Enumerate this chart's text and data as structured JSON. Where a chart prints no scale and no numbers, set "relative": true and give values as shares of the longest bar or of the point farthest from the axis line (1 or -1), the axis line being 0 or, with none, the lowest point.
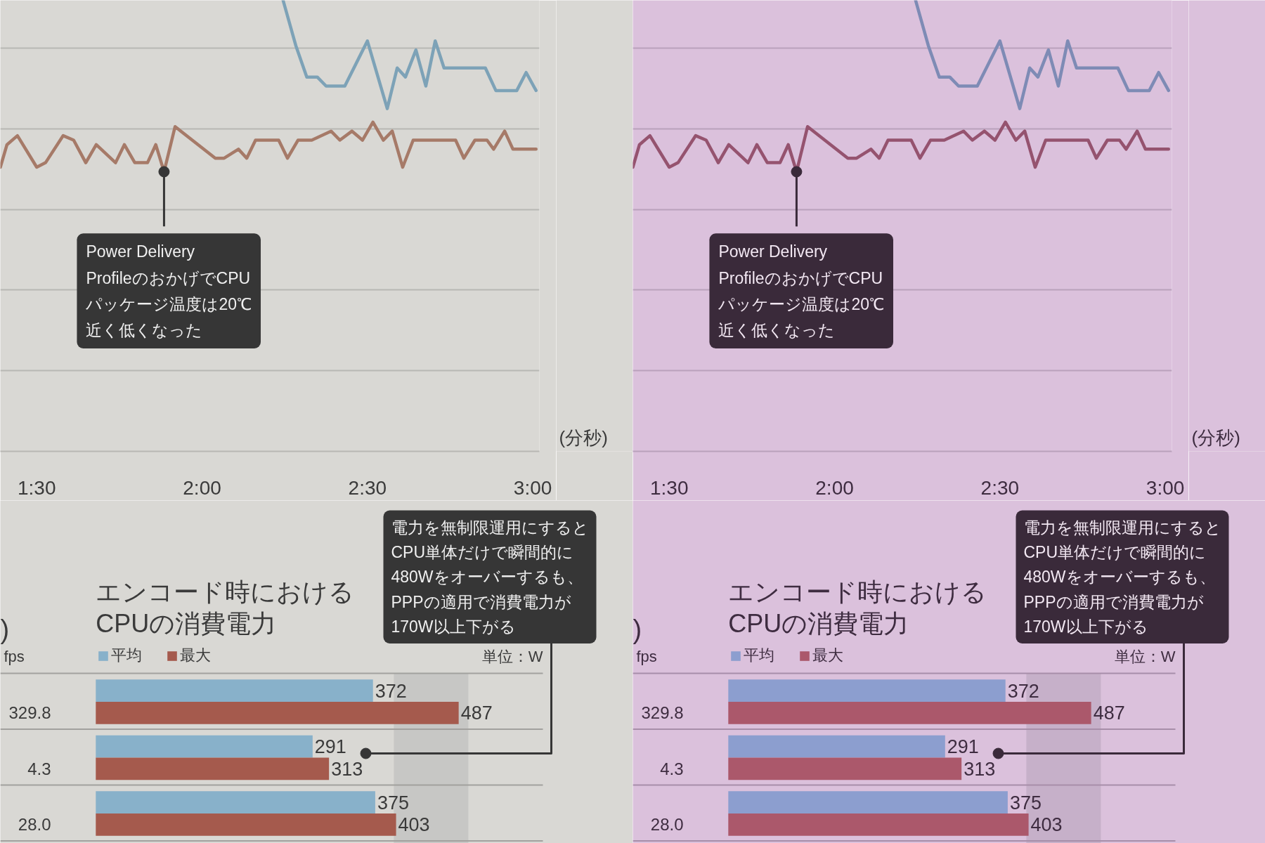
{
  "chart_data": [
    {
      "type": "line",
      "relative": true,
      "xlim": [
        83.4,
        181.2
      ],
      "xticks": [
        {
          "value": 90,
          "label": "1:30"
        },
        {
          "value": 120,
          "label": "2:00"
        },
        {
          "value": 150,
          "label": "2:30"
        },
        {
          "value": 180,
          "label": "3:00"
        }
      ],
      "xlabel": "(分秒)",
      "tick_labels": "x",
      "grid": "y",
      "series": [
        {
          "color": "#7da2b7",
          "x": [
            134.7,
            137.0,
            139.0,
            140.9,
            142.5,
            145.9,
            150.0,
            153.6,
            155.4,
            156.9,
            158.8,
            160.6,
            162.3,
            163.9,
            171.4,
            173.3,
            177.1,
            178.8,
            180.6
          ],
          "values": [
            1,
            0.9,
            0.83,
            0.83,
            0.81,
            0.81,
            0.91,
            0.76,
            0.85,
            0.83,
            0.89,
            0.81,
            0.91,
            0.85,
            0.85,
            0.8,
            0.8,
            0.84,
            0.8
          ]
        },
        {
          "color": "#a67a68",
          "x": [
            83.4,
            84.6,
            86.5,
            90.0,
            91.6,
            94.8,
            96.7,
            98.9,
            100.8,
            104.3,
            105.9,
            107.8,
            110.1,
            111.6,
            113.1,
            115.1,
            122.4,
            124.0,
            126.6,
            128.1,
            129.7,
            133.9,
            135.5,
            137.4,
            139.9,
            143.4,
            145.0,
            147.2,
            149.1,
            151.0,
            152.9,
            154.5,
            156.4,
            158.3,
            166.0,
            167.5,
            169.5,
            171.7,
            172.9,
            174.9,
            176.4,
            180.6
          ],
          "values": [
            0.63,
            0.68,
            0.7,
            0.63,
            0.64,
            0.7,
            0.69,
            0.64,
            0.68,
            0.64,
            0.68,
            0.64,
            0.64,
            0.68,
            0.62,
            0.72,
            0.65,
            0.65,
            0.67,
            0.65,
            0.69,
            0.69,
            0.65,
            0.69,
            0.69,
            0.71,
            0.69,
            0.71,
            0.69,
            0.73,
            0.69,
            0.71,
            0.63,
            0.69,
            0.69,
            0.65,
            0.69,
            0.69,
            0.67,
            0.71,
            0.67,
            0.67
          ]
        }
      ],
      "annotations": [
        {
          "text": "Power Delivery ProfileのおかげでCPUパッケージ温度は20℃近く低くなった",
          "x": 113.1,
          "y": 0.62
        }
      ]
    },
    {
      "type": "line",
      "relative": true,
      "xlim": [
        83.4,
        181.2
      ],
      "xticks": [
        {
          "value": 90,
          "label": "1:30"
        },
        {
          "value": 120,
          "label": "2:00"
        },
        {
          "value": 150,
          "label": "2:30"
        },
        {
          "value": 180,
          "label": "3:00"
        }
      ],
      "xlabel": "(分秒)",
      "tick_labels": "x",
      "grid": "y",
      "series": [
        {
          "color": "#7e8bb5",
          "x": [
            134.7,
            137.0,
            139.0,
            140.9,
            142.5,
            145.9,
            150.0,
            153.6,
            155.4,
            156.9,
            158.8,
            160.6,
            162.3,
            163.9,
            171.4,
            173.3,
            177.1,
            178.8,
            180.6
          ],
          "values": [
            1,
            0.9,
            0.83,
            0.83,
            0.81,
            0.81,
            0.91,
            0.76,
            0.85,
            0.83,
            0.89,
            0.81,
            0.91,
            0.85,
            0.85,
            0.8,
            0.8,
            0.84,
            0.8
          ]
        },
        {
          "color": "#95536f",
          "x": [
            83.4,
            84.6,
            86.5,
            90.0,
            91.6,
            94.8,
            96.7,
            98.9,
            100.8,
            104.3,
            105.9,
            107.8,
            110.1,
            111.6,
            113.1,
            115.1,
            122.4,
            124.0,
            126.6,
            128.1,
            129.7,
            133.9,
            135.5,
            137.4,
            139.9,
            143.4,
            145.0,
            147.2,
            149.1,
            151.0,
            152.9,
            154.5,
            156.4,
            158.3,
            166.0,
            167.5,
            169.5,
            171.7,
            172.9,
            174.9,
            176.4,
            180.6
          ],
          "values": [
            0.63,
            0.68,
            0.7,
            0.63,
            0.64,
            0.7,
            0.69,
            0.64,
            0.68,
            0.64,
            0.68,
            0.64,
            0.64,
            0.68,
            0.62,
            0.72,
            0.65,
            0.65,
            0.67,
            0.65,
            0.69,
            0.69,
            0.65,
            0.69,
            0.69,
            0.71,
            0.69,
            0.71,
            0.69,
            0.73,
            0.69,
            0.71,
            0.63,
            0.69,
            0.69,
            0.65,
            0.69,
            0.69,
            0.67,
            0.71,
            0.67,
            0.67
          ]
        }
      ],
      "annotations": [
        {
          "text": "Power Delivery ProfileのおかげでCPUパッケージ温度は20℃近く低くなった",
          "x": 113.1,
          "y": 0.62
        }
      ]
    },
    {
      "type": "bar",
      "orientation": "horizontal",
      "title": "エンコード時におけるCPUの消費電力",
      "categories": [
        null,
        null,
        null
      ],
      "series": [
        {
          "name": "平均",
          "color": "#88b1ca",
          "values": [
            372,
            291,
            375
          ]
        },
        {
          "name": "最大",
          "color": "#a55a4d",
          "values": [
            487,
            313,
            403
          ]
        }
      ],
      "data_labels": true,
      "legend": "top left",
      "xlabel": "単位：W",
      "tick_labels": false,
      "grid": "y",
      "bands": [
        {
          "axis": "x",
          "from": 400,
          "to": 500,
          "color": "#c7c7c5"
        }
      ],
      "annotations": [
        "電力を無制限運用にするとCPU単体だけで瞬間的に480Wをオーバーするも、PPPの適用で消費電力が170W以上下がる",
        ")",
        "fps",
        "329.8",
        "4.3",
        "28.0"
      ]
    },
    {
      "type": "bar",
      "orientation": "horizontal",
      "title": "エンコード時におけるCPUの消費電力",
      "categories": [
        null,
        null,
        null
      ],
      "series": [
        {
          "name": "平均",
          "color": "#8c9ecf",
          "values": [
            372,
            291,
            375
          ]
        },
        {
          "name": "最大",
          "color": "#ab586b",
          "values": [
            487,
            313,
            403
          ]
        }
      ],
      "data_labels": true,
      "legend": "top left",
      "xlabel": "単位：W",
      "tick_labels": false,
      "grid": "y",
      "bands": [
        {
          "axis": "x",
          "from": 400,
          "to": 500,
          "color": "#c6b0c9"
        }
      ],
      "annotations": [
        "電力を無制限運用にするとCPU単体だけで瞬間的に480Wをオーバーするも、PPPの適用で消費電力が170W以上下がる",
        ")",
        "fps",
        "329.8",
        "4.3",
        "28.0"
      ]
    }
  ]
}
